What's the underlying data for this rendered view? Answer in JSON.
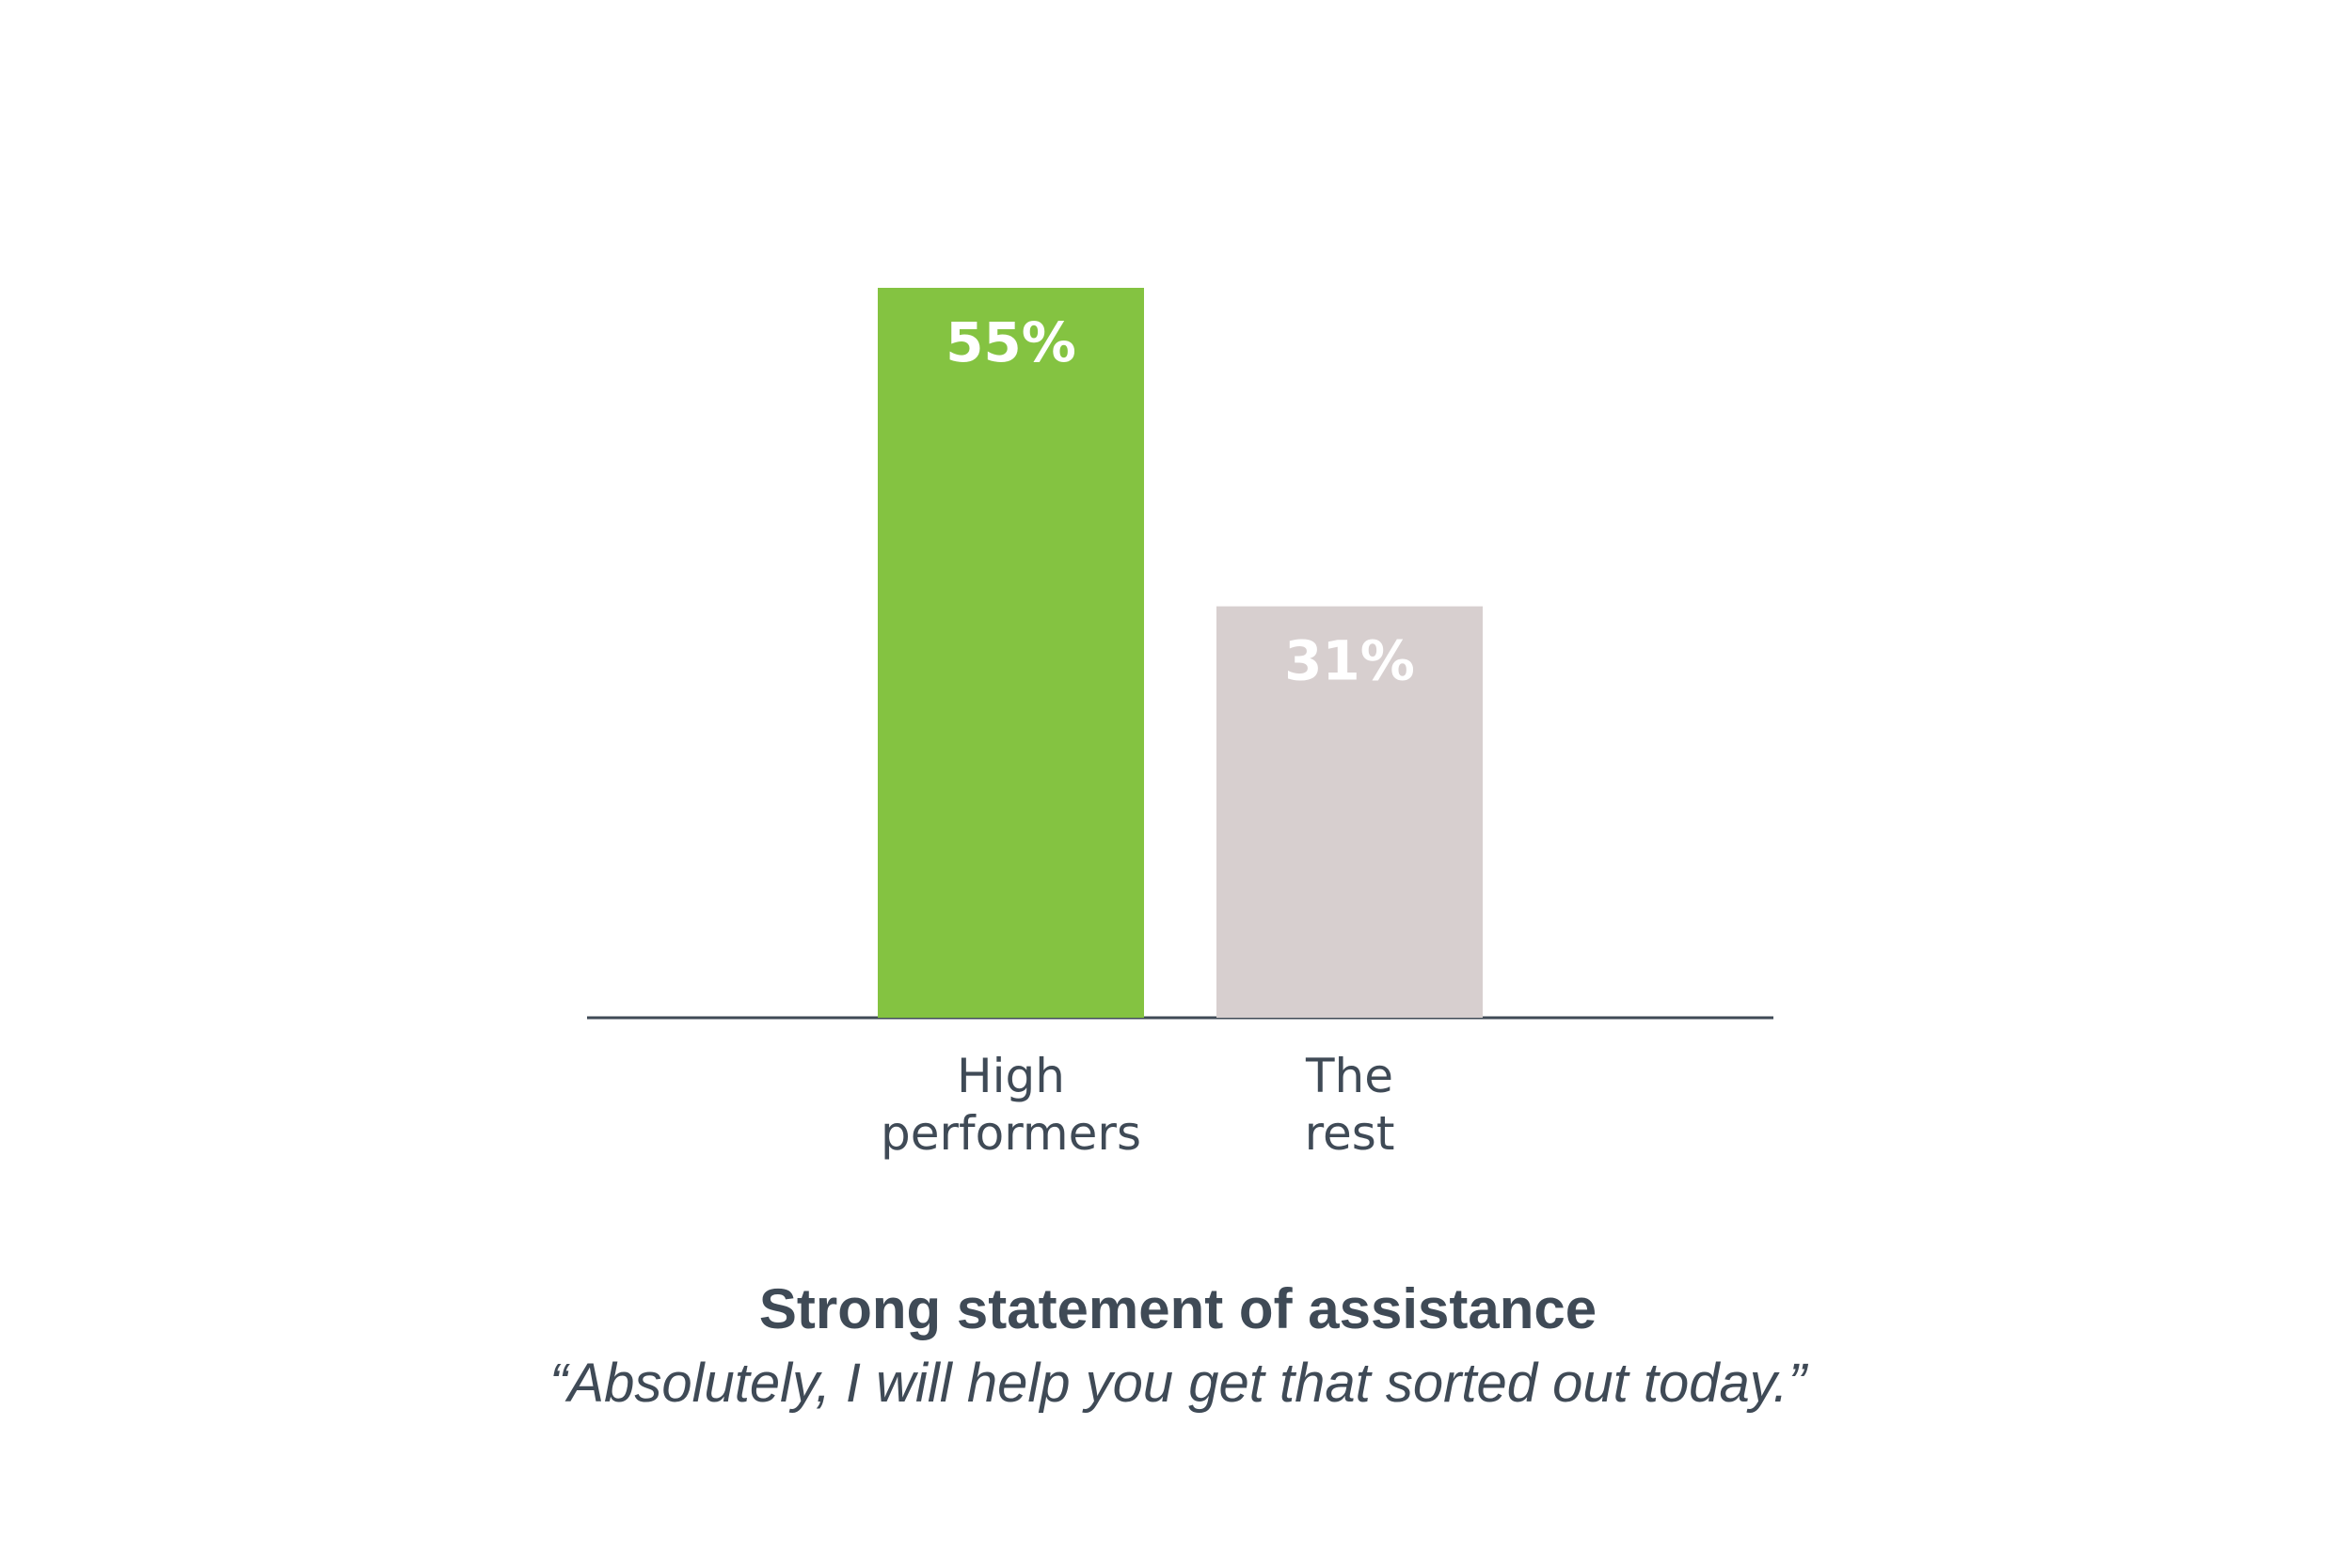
{
  "chart_data": {
    "type": "bar",
    "title": "Strong statement of assistance",
    "subtitle": "“Absolutely, I will help you get that sorted out today.”",
    "categories": [
      "High performers",
      "The rest"
    ],
    "values": [
      55,
      31
    ],
    "value_labels": [
      "55%",
      "31%"
    ],
    "colors": [
      "#84c341",
      "#d7cfcf"
    ]
  }
}
